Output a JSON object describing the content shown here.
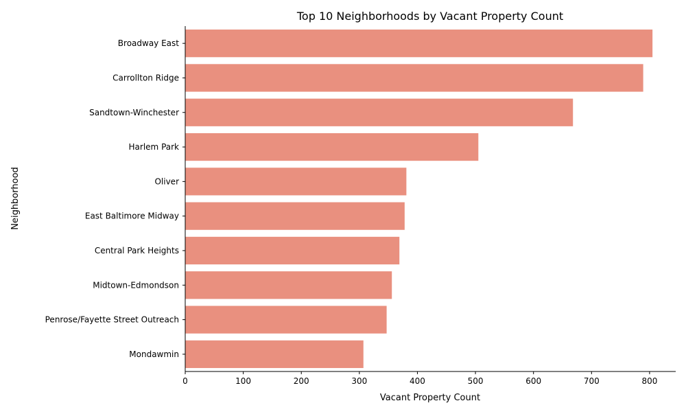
{
  "chart_data": {
    "type": "bar",
    "orientation": "horizontal",
    "title": "Top 10 Neighborhoods by Vacant Property Count",
    "xlabel": "Vacant Property Count",
    "ylabel": "Neighborhood",
    "categories": [
      "Broadway East",
      "Carrollton Ridge",
      "Sandtown-Winchester",
      "Harlem Park",
      "Oliver",
      "East Baltimore Midway",
      "Central Park Heights",
      "Midtown-Edmondson",
      "Penrose/Fayette Street Outreach",
      "Mondawmin"
    ],
    "values": [
      805,
      789,
      668,
      505,
      381,
      378,
      369,
      356,
      347,
      307
    ],
    "xlim": [
      0,
      845
    ],
    "xticks": [
      0,
      100,
      200,
      300,
      400,
      500,
      600,
      700,
      800
    ],
    "grid": false,
    "bar_color": "#E9907F"
  }
}
